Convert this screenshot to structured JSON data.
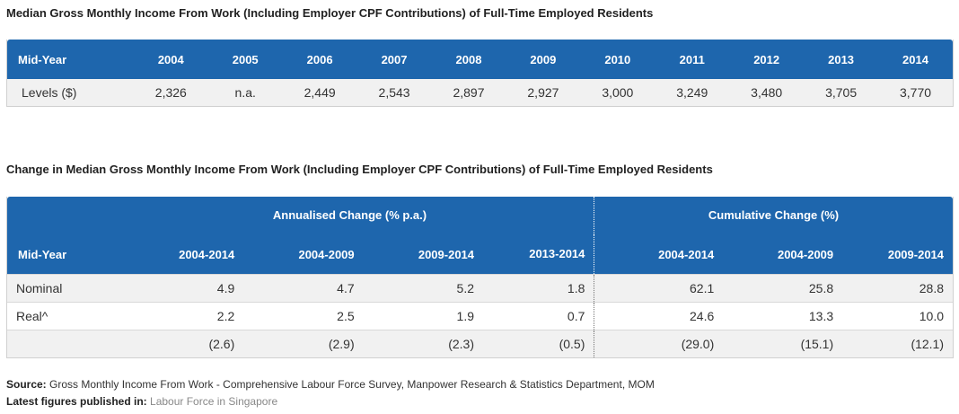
{
  "table1": {
    "title": "Median Gross Monthly Income From Work (Including Employer CPF Contributions) of Full-Time Employed Residents",
    "header_label": "Mid-Year",
    "years": [
      "2004",
      "2005",
      "2006",
      "2007",
      "2008",
      "2009",
      "2010",
      "2011",
      "2012",
      "2013",
      "2014"
    ],
    "row_label": "Levels ($)",
    "values": [
      "2,326",
      "n.a.",
      "2,449",
      "2,543",
      "2,897",
      "2,927",
      "3,000",
      "3,249",
      "3,480",
      "3,705",
      "3,770"
    ]
  },
  "table2": {
    "title": "Change in Median Gross Monthly Income From Work (Including Employer CPF Contributions) of Full-Time Employed Residents",
    "group_annual": "Annualised Change (% p.a.)",
    "group_cumulative": "Cumulative Change (%)",
    "header_label": "Mid-Year",
    "annual_periods": [
      "2004-2014",
      "2004-2009",
      "2009-2014",
      "2013-2014"
    ],
    "cumulative_periods": [
      "2004-2014",
      "2004-2009",
      "2009-2014"
    ],
    "rows": [
      {
        "label": "Nominal",
        "annual": [
          "4.9",
          "4.7",
          "5.2",
          "1.8"
        ],
        "cumulative": [
          "62.1",
          "25.8",
          "28.8"
        ]
      },
      {
        "label": "Real^",
        "annual": [
          "2.2",
          "2.5",
          "1.9",
          "0.7"
        ],
        "cumulative": [
          "24.6",
          "13.3",
          "10.0"
        ]
      },
      {
        "label": "",
        "annual": [
          "(2.6)",
          "(2.9)",
          "(2.3)",
          "(0.5)"
        ],
        "cumulative": [
          "(29.0)",
          "(15.1)",
          "(12.1)"
        ]
      }
    ]
  },
  "footer": {
    "source_label": "Source:",
    "source_text": "Gross Monthly Income From Work - Comprehensive Labour Force Survey, Manpower Research & Statistics Department, MOM",
    "published_label": "Latest figures published in:",
    "published_link": "Labour Force in Singapore"
  }
}
